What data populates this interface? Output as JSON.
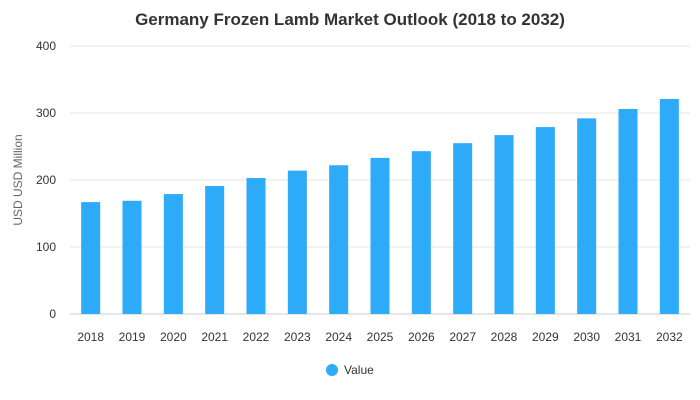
{
  "chart_data": {
    "type": "bar",
    "title": "Germany Frozen Lamb Market Outlook (2018 to 2032)",
    "xlabel": "",
    "ylabel": "USD USD Million",
    "ylim": [
      0,
      400
    ],
    "yticks": [
      0,
      100,
      200,
      300,
      400
    ],
    "grid": true,
    "legend_position": "bottom-center",
    "categories": [
      "2018",
      "2019",
      "2020",
      "2021",
      "2022",
      "2023",
      "2024",
      "2025",
      "2026",
      "2027",
      "2028",
      "2029",
      "2030",
      "2031",
      "2032"
    ],
    "series": [
      {
        "name": "Value",
        "color": "#2EABF8",
        "values": [
          167,
          169,
          179,
          191,
          203,
          214,
          222,
          233,
          243,
          255,
          267,
          279,
          292,
          306,
          321
        ]
      }
    ]
  }
}
